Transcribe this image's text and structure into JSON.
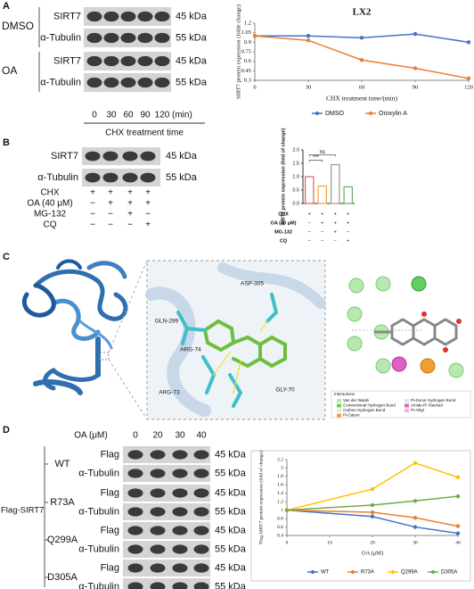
{
  "panels": {
    "A": {
      "letter": "A",
      "groups": [
        {
          "name": "DMSO",
          "rows": [
            {
              "label": "SIRT7",
              "kda": "45 kDa"
            },
            {
              "label": "α-Tubulin",
              "kda": "55 kDa"
            }
          ]
        },
        {
          "name": "OA",
          "rows": [
            {
              "label": "SIRT7",
              "kda": "45 kDa"
            },
            {
              "label": "α-Tubulin",
              "kda": "55 kDa"
            }
          ]
        }
      ],
      "lanes": [
        "0",
        "30",
        "60",
        "90",
        "120"
      ],
      "lane_unit": "(min)",
      "lane_title": "CHX treatment time"
    },
    "B": {
      "letter": "B",
      "rows": [
        {
          "label": "SIRT7",
          "kda": "45 kDa"
        },
        {
          "label": "α-Tubulin",
          "kda": "55 kDa"
        }
      ],
      "conditions": [
        {
          "name": "CHX",
          "signs": [
            "+",
            "+",
            "+",
            "+"
          ]
        },
        {
          "name": "OA (40 μM)",
          "signs": [
            "−",
            "+",
            "+",
            "+"
          ]
        },
        {
          "name": "MG-132",
          "signs": [
            "−",
            "−",
            "+",
            "−"
          ]
        },
        {
          "name": "CQ",
          "signs": [
            "−",
            "−",
            "−",
            "+"
          ]
        }
      ]
    },
    "C": {
      "letter": "C",
      "residues": [
        "ASP-305",
        "GLN-299",
        "ARG-74",
        "ARG-73",
        "GLY-70"
      ],
      "legend_title": "Interactions",
      "legend": [
        "Van der Waals",
        "Conventional Hydrogen Bond",
        "Carbon Hydrogen Bond",
        "Pi-Cation",
        "Pi-Donor Hydrogen Bond",
        "Amide-Pi Stacked",
        "Pi-Alkyl"
      ]
    },
    "D": {
      "letter": "D",
      "treatment": "OA (μM)",
      "lanes": [
        "0",
        "20",
        "30",
        "40"
      ],
      "construct": "Flag-SIRT7",
      "groups": [
        {
          "name": "WT",
          "rows": [
            {
              "label": "Flag",
              "kda": "45 kDa"
            },
            {
              "label": "α-Tubulin",
              "kda": "55 kDa"
            }
          ]
        },
        {
          "name": "R73A",
          "rows": [
            {
              "label": "Flag",
              "kda": "45 kDa"
            },
            {
              "label": "α-Tubulin",
              "kda": "55 kDa"
            }
          ]
        },
        {
          "name": "Q299A",
          "rows": [
            {
              "label": "Flag",
              "kda": "45 kDa"
            },
            {
              "label": "α-Tubulin",
              "kda": "55 kDa"
            }
          ]
        },
        {
          "name": "D305A",
          "rows": [
            {
              "label": "Flag",
              "kda": "45 kDa"
            },
            {
              "label": "α-Tubulin",
              "kda": "55 kDa"
            }
          ]
        }
      ]
    }
  },
  "chart_data": [
    {
      "type": "line",
      "title": "LX2",
      "xlabel": "CHX treatment time/(min)",
      "ylabel": "SIRT7 protein expression (folde change)",
      "x": [
        0,
        30,
        60,
        90,
        120
      ],
      "xlim": [
        0,
        120
      ],
      "xticks": [
        0,
        30,
        60,
        90,
        120
      ],
      "ylim": [
        0.3,
        1.2
      ],
      "yticks": [
        0.3,
        0.45,
        0.6,
        0.75,
        0.9,
        1.05,
        1.2
      ],
      "series": [
        {
          "name": "DMSO",
          "color": "#4472c4",
          "values": [
            1.0,
            1.0,
            0.97,
            1.03,
            0.9
          ]
        },
        {
          "name": "Oroxylin A",
          "color": "#ed7d31",
          "values": [
            1.0,
            0.93,
            0.62,
            0.49,
            0.33
          ]
        }
      ]
    },
    {
      "type": "bar",
      "ylabel": "SIRT7 protein expression (fold of change)",
      "categories": [
        null,
        null,
        null,
        null
      ],
      "values": [
        1.0,
        0.65,
        1.45,
        0.62
      ],
      "colors": [
        "#e06060",
        "#f0a040",
        "#999999",
        "#60b060"
      ],
      "ylim": [
        0,
        2
      ],
      "yticks": [
        {
          "value": 0,
          "label": "0.0"
        },
        {
          "value": 0.5,
          "label": "0.5"
        },
        {
          "value": 1,
          "label": "1.0"
        },
        {
          "value": 1.5,
          "label": "1.5"
        },
        {
          "value": 2,
          "label": "2.0"
        }
      ],
      "annotations": [
        "***",
        "ns"
      ],
      "conditions": [
        {
          "name": "CHX",
          "signs": [
            "+",
            "+",
            "+",
            "+"
          ]
        },
        {
          "name": "OA (40 μM)",
          "signs": [
            "−",
            "+",
            "+",
            "+"
          ]
        },
        {
          "name": "MG-132",
          "signs": [
            "−",
            "−",
            "+",
            "−"
          ]
        },
        {
          "name": "CQ",
          "signs": [
            "−",
            "−",
            "−",
            "+"
          ]
        }
      ]
    },
    {
      "type": "line",
      "xlabel": "OA (μM)",
      "ylabel": "Flag-SIRT7 protein expression (fold of change)",
      "x": [
        0,
        20,
        30,
        40
      ],
      "xlim": [
        0,
        40
      ],
      "xticks": [
        0,
        10,
        20,
        30,
        40
      ],
      "ylim": [
        0.4,
        2.2
      ],
      "yticks": [
        0.4,
        0.6,
        0.8,
        1,
        1.2,
        1.4,
        1.6,
        1.8,
        2,
        2.2
      ],
      "series": [
        {
          "name": "WT",
          "color": "#4472c4",
          "values": [
            1.0,
            0.85,
            0.6,
            0.45
          ]
        },
        {
          "name": "R73A",
          "color": "#ed7d31",
          "values": [
            1.0,
            0.95,
            0.82,
            0.62
          ]
        },
        {
          "name": "Q299A",
          "color": "#ffc000",
          "values": [
            1.0,
            1.5,
            2.12,
            1.78
          ]
        },
        {
          "name": "D305A",
          "color": "#70ad47",
          "values": [
            1.0,
            1.12,
            1.22,
            1.33
          ]
        }
      ]
    }
  ]
}
